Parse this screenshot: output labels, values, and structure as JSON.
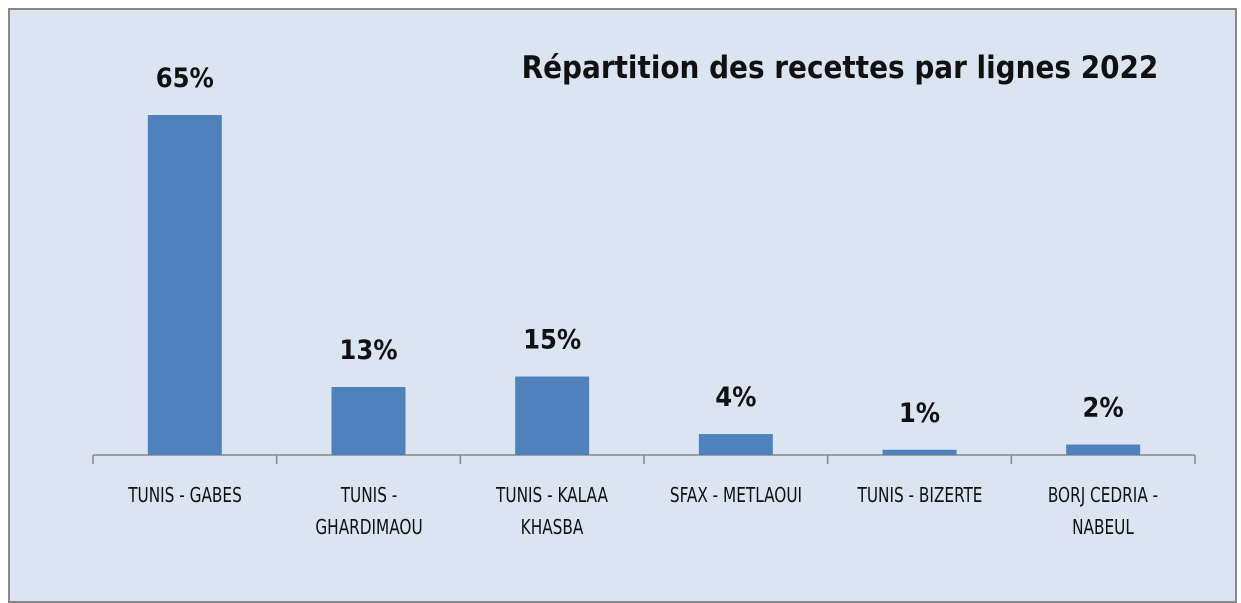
{
  "chart_data": {
    "type": "bar",
    "title": "Répartition des recettes par lignes 2022",
    "categories": [
      "TUNIS - GABES",
      "TUNIS - GHARDIMAOU",
      "TUNIS - KALAA KHASBA",
      "SFAX - METLAOUI",
      "TUNIS - BIZERTE",
      "BORJ CEDRIA - NABEUL"
    ],
    "values": [
      65,
      13,
      15,
      4,
      1,
      2
    ],
    "value_labels": [
      "65%",
      "13%",
      "15%",
      "4%",
      "1%",
      "2%"
    ],
    "color": "#4f81bd"
  }
}
